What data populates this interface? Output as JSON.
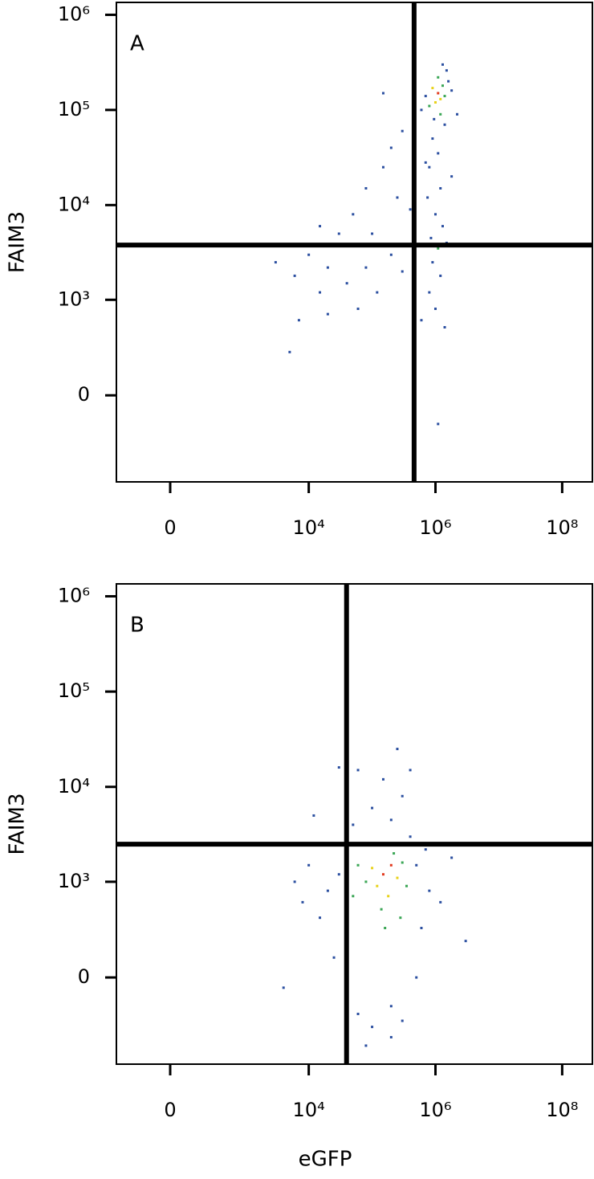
{
  "chart_data": [
    {
      "type": "scatter",
      "panel_label": "A",
      "ylabel": "FAIM3",
      "scale": "biexponential",
      "xlim": [
        -450,
        300000000
      ],
      "ylim": [
        -800,
        1350000
      ],
      "xticks": [
        0,
        {
          "value": 10000,
          "label": "10⁴"
        },
        {
          "value": 1000000,
          "label": "10⁶"
        },
        {
          "value": 100000000,
          "label": "10⁸"
        }
      ],
      "yticks": [
        0,
        {
          "value": 1000,
          "label": "10³"
        },
        {
          "value": 10000,
          "label": "10⁴"
        },
        {
          "value": 100000,
          "label": "10⁵"
        },
        {
          "value": 1000000,
          "label": "10⁶"
        }
      ],
      "quadrant": {
        "x": 460000,
        "y": 3800
      },
      "x": [
        1100000,
        1200000,
        900000,
        1300000,
        1000000,
        1400000,
        800000,
        1100000,
        1600000,
        700000,
        1200000,
        950000,
        1800000,
        1500000,
        600000,
        1300000,
        900000,
        1100000,
        800000,
        1200000,
        750000,
        1000000,
        1300000,
        850000,
        1100000,
        1500000,
        900000,
        1200000,
        800000,
        1000000,
        1400000,
        1100000,
        600000,
        700000,
        1400000,
        2200000,
        1800000,
        300000,
        200000,
        150000,
        80000,
        50000,
        30000,
        15000,
        10000,
        250000,
        400000,
        100000,
        20000,
        6000,
        3000,
        40000,
        15000,
        80000,
        300000,
        120000,
        200000,
        7000,
        20000,
        5000,
        150000,
        60000
      ],
      "y": [
        150000,
        130000,
        170000,
        180000,
        120000,
        140000,
        110000,
        220000,
        200000,
        140000,
        90000,
        80000,
        160000,
        260000,
        100000,
        300000,
        50000,
        35000,
        25000,
        15000,
        12000,
        8000,
        6000,
        4500,
        3500,
        4000,
        2500,
        1800,
        1200,
        800,
        500,
        -150,
        600,
        28000,
        70000,
        90000,
        20000,
        60000,
        40000,
        25000,
        15000,
        8000,
        5000,
        6000,
        3000,
        12000,
        9000,
        5000,
        2200,
        1800,
        2500,
        1500,
        1200,
        2200,
        2000,
        1200,
        3000,
        600,
        700,
        250,
        150000,
        800
      ],
      "colors": [
        "#e23a1e",
        "#e8d21a",
        "#e8d21a",
        "#3aa655",
        "#e8d21a",
        "#3aa655",
        "#3aa655",
        "#3aa655",
        "#2b4fa0",
        "#2b4fa0",
        "#3aa655",
        "#2b4fa0",
        "#2b4fa0",
        "#2b4fa0",
        "#2b4fa0",
        "#2b4fa0",
        "#2b4fa0",
        "#2b4fa0",
        "#2b4fa0",
        "#2b4fa0",
        "#2b4fa0",
        "#2b4fa0",
        "#2b4fa0",
        "#2b4fa0",
        "#3aa655",
        "#2b4fa0",
        "#2b4fa0",
        "#2b4fa0",
        "#2b4fa0",
        "#2b4fa0",
        "#2b4fa0",
        "#2b4fa0",
        "#2b4fa0",
        "#2b4fa0",
        "#2b4fa0",
        "#2b4fa0",
        "#2b4fa0",
        "#2b4fa0",
        "#2b4fa0",
        "#2b4fa0",
        "#2b4fa0",
        "#2b4fa0",
        "#2b4fa0",
        "#2b4fa0",
        "#2b4fa0",
        "#2b4fa0",
        "#2b4fa0",
        "#2b4fa0",
        "#2b4fa0",
        "#2b4fa0",
        "#2b4fa0",
        "#2b4fa0",
        "#2b4fa0",
        "#2b4fa0",
        "#2b4fa0",
        "#2b4fa0",
        "#2b4fa0",
        "#2b4fa0",
        "#2b4fa0",
        "#2b4fa0",
        "#2b4fa0",
        "#2b4fa0"
      ]
    },
    {
      "type": "scatter",
      "panel_label": "B",
      "ylabel": "FAIM3",
      "xlabel": "eGFP",
      "scale": "biexponential",
      "xlim": [
        -450,
        300000000
      ],
      "ylim": [
        -800,
        1350000
      ],
      "xticks": [
        0,
        {
          "value": 10000,
          "label": "10⁴"
        },
        {
          "value": 1000000,
          "label": "10⁶"
        },
        {
          "value": 100000000,
          "label": "10⁸"
        }
      ],
      "yticks": [
        0,
        {
          "value": 1000,
          "label": "10³"
        },
        {
          "value": 10000,
          "label": "10⁴"
        },
        {
          "value": 100000,
          "label": "10⁵"
        },
        {
          "value": 1000000,
          "label": "10⁶"
        }
      ],
      "quadrant": {
        "x": 39500,
        "y": 2500
      },
      "x": [
        150000,
        200000,
        120000,
        250000,
        180000,
        100000,
        300000,
        140000,
        220000,
        80000,
        350000,
        160000,
        60000,
        280000,
        50000,
        40000,
        30000,
        20000,
        15000,
        25000,
        10000,
        8000,
        40000,
        60000,
        100000,
        200000,
        300000,
        500000,
        600000,
        800000,
        500000,
        700000,
        400000,
        200000,
        100000,
        300000,
        150000,
        60000,
        400000,
        250000,
        50000,
        30000,
        12000,
        6000,
        4000,
        1200000,
        3000000,
        1800000,
        80000,
        200000
      ],
      "y": [
        1200,
        1500,
        900,
        1100,
        700,
        1400,
        1600,
        500,
        2000,
        1000,
        900,
        300,
        1500,
        400,
        700,
        2500,
        1200,
        800,
        400,
        100,
        1500,
        600,
        -100,
        -200,
        -300,
        -150,
        -250,
        0,
        300,
        800,
        1500,
        2200,
        3000,
        4500,
        6000,
        8000,
        12000,
        15000,
        15000,
        25000,
        4000,
        16000,
        5000,
        1000,
        -50,
        600,
        200,
        1800,
        -500,
        -400
      ],
      "colors": [
        "#e23a1e",
        "#e23a1e",
        "#e8d21a",
        "#e8d21a",
        "#e8d21a",
        "#e8d21a",
        "#3aa655",
        "#3aa655",
        "#3aa655",
        "#3aa655",
        "#3aa655",
        "#3aa655",
        "#3aa655",
        "#3aa655",
        "#3aa655",
        "#2b4fa0",
        "#2b4fa0",
        "#2b4fa0",
        "#2b4fa0",
        "#2b4fa0",
        "#2b4fa0",
        "#2b4fa0",
        "#2b4fa0",
        "#2b4fa0",
        "#2b4fa0",
        "#2b4fa0",
        "#2b4fa0",
        "#2b4fa0",
        "#2b4fa0",
        "#2b4fa0",
        "#2b4fa0",
        "#2b4fa0",
        "#2b4fa0",
        "#2b4fa0",
        "#2b4fa0",
        "#2b4fa0",
        "#2b4fa0",
        "#2b4fa0",
        "#2b4fa0",
        "#2b4fa0",
        "#2b4fa0",
        "#2b4fa0",
        "#2b4fa0",
        "#2b4fa0",
        "#2b4fa0",
        "#2b4fa0",
        "#2b4fa0",
        "#2b4fa0",
        "#2b4fa0",
        "#2b4fa0"
      ]
    }
  ]
}
